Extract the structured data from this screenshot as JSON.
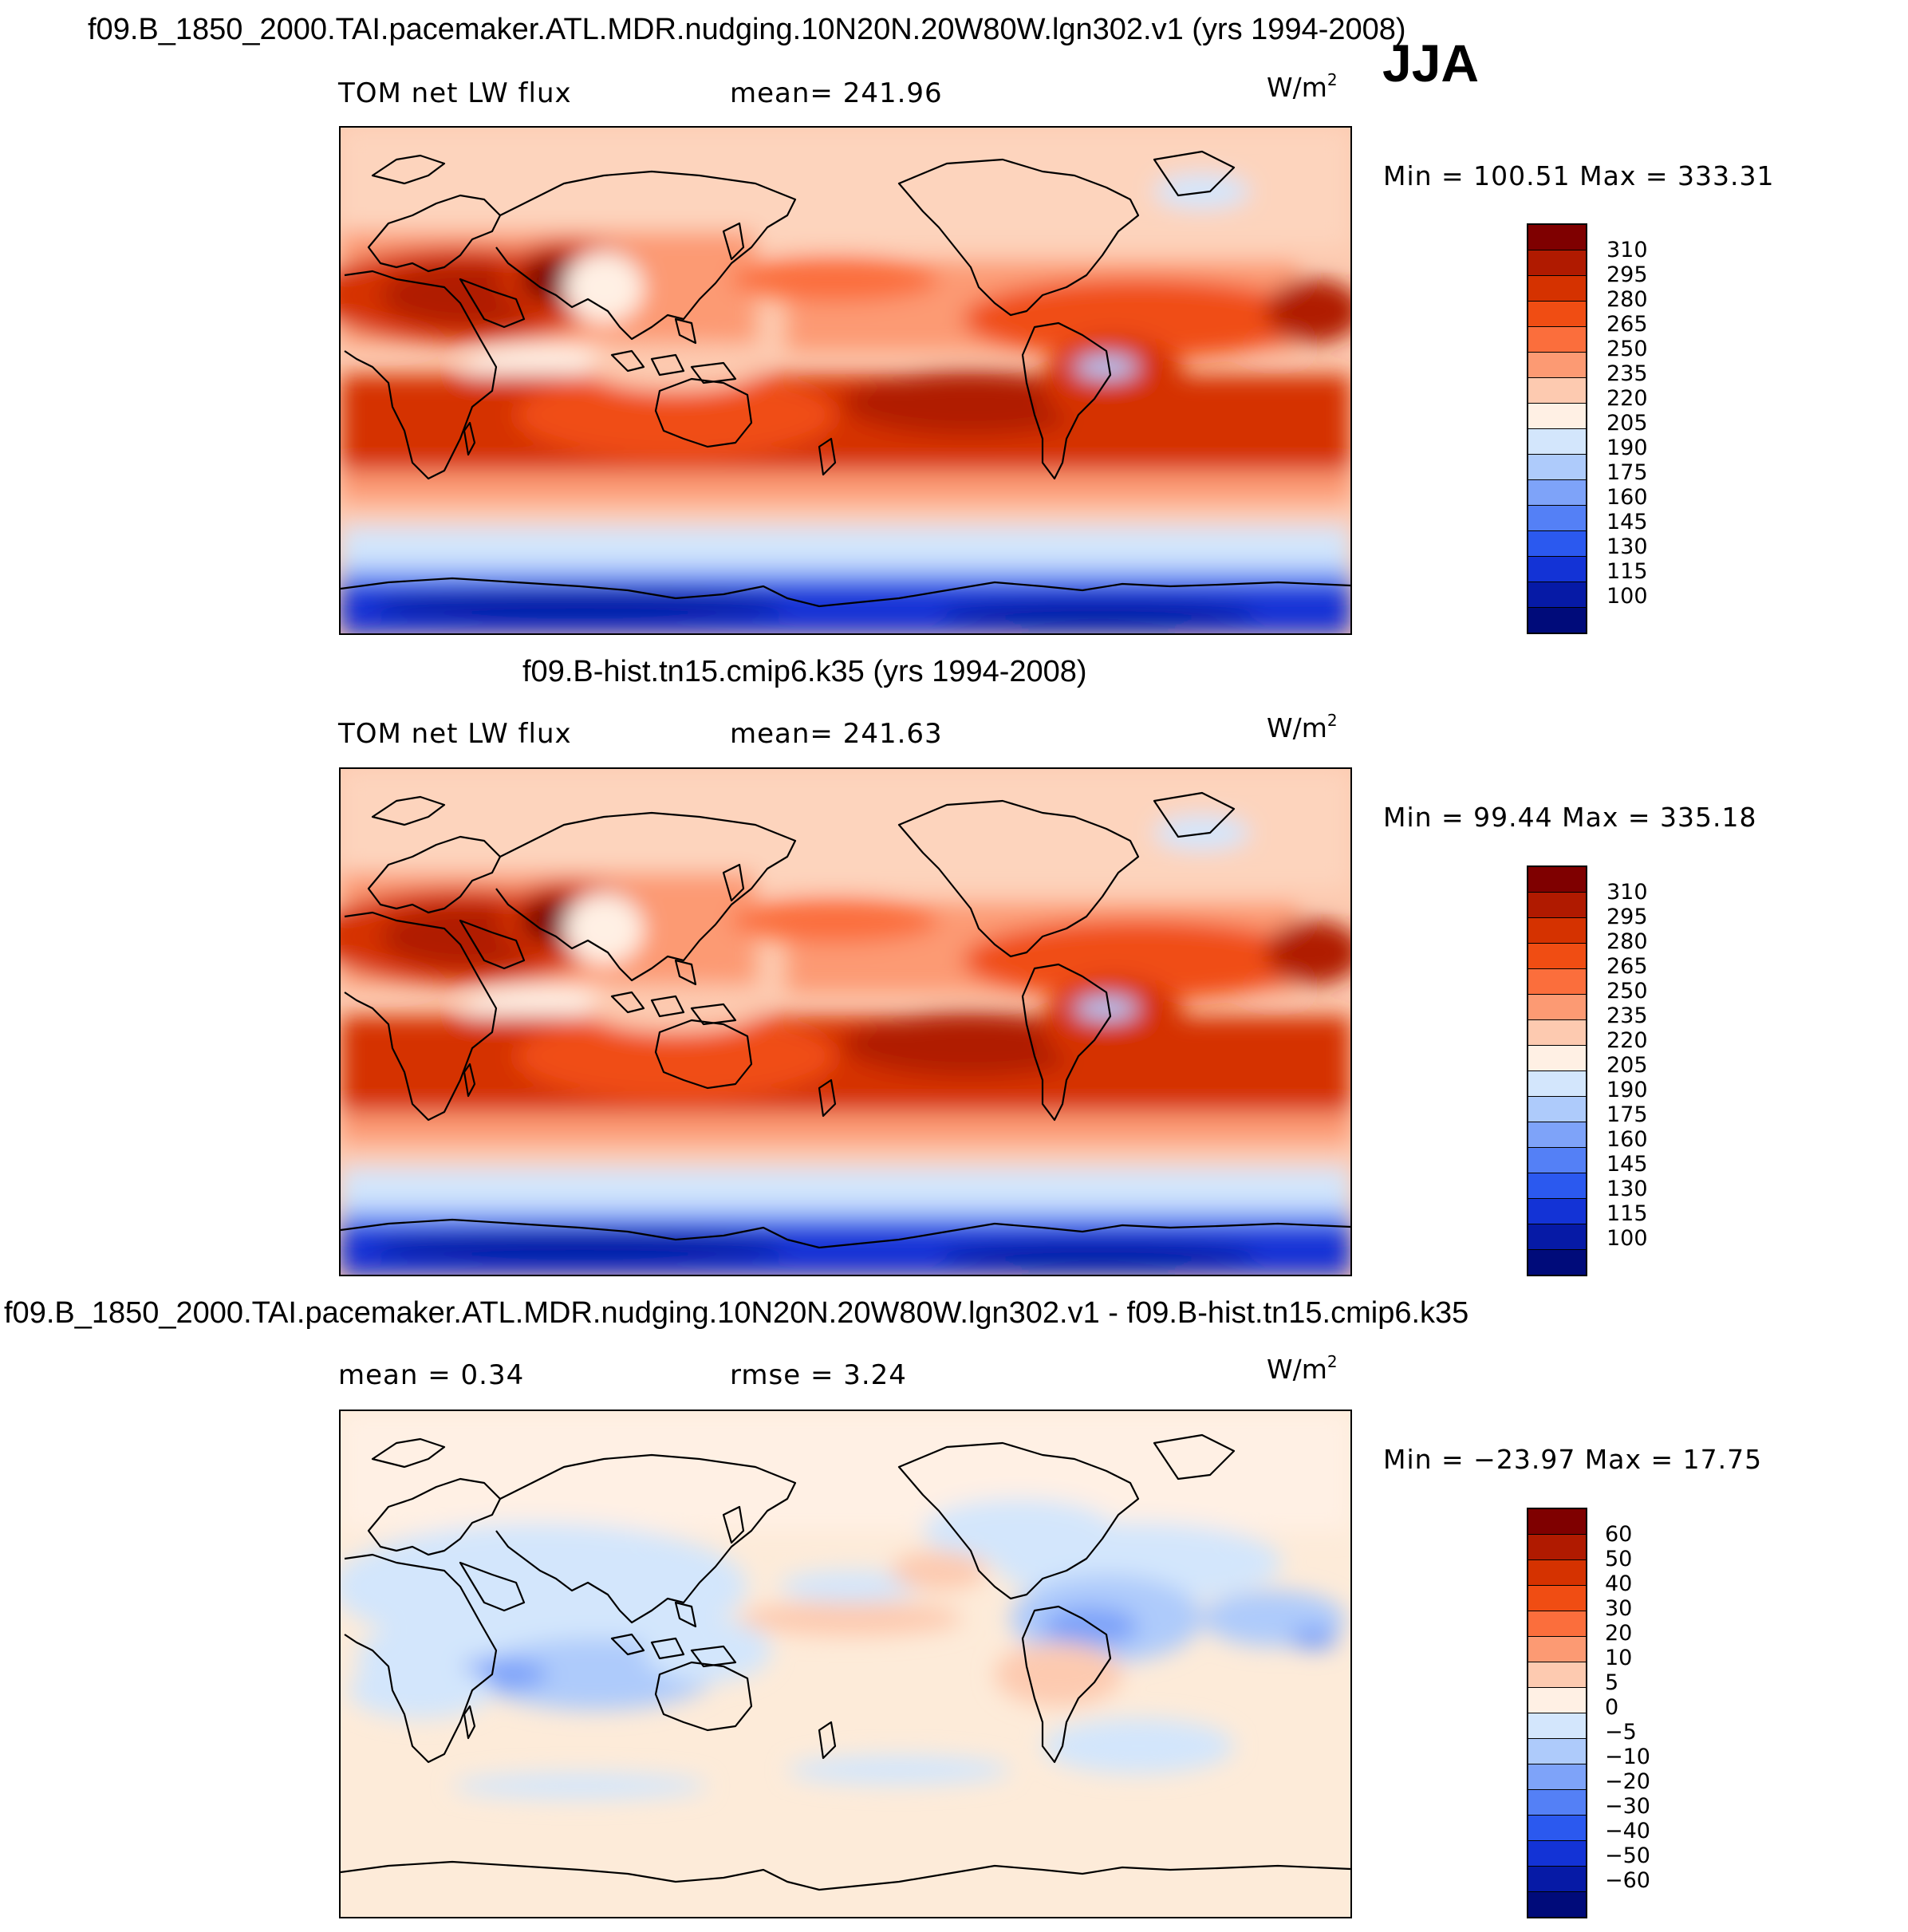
{
  "season": "JJA",
  "units_base": "W/m",
  "units_exp": "2",
  "panels": [
    {
      "title": "f09.B_1850_2000.TAI.pacemaker.ATL.MDR.nudging.10N20N.20W80W.lgn302.v1 (yrs 1994-2008)",
      "left_label": "TOM  net  LW  flux",
      "right_label": "mean=  241.96",
      "minmax": "Min  =  100.51  Max  =  333.31",
      "levels": [
        "310",
        "295",
        "280",
        "265",
        "250",
        "235",
        "220",
        "205",
        "190",
        "175",
        "160",
        "145",
        "130",
        "115",
        "100"
      ]
    },
    {
      "title": "f09.B-hist.tn15.cmip6.k35 (yrs 1994-2008)",
      "left_label": "TOM  net  LW  flux",
      "right_label": "mean=  241.63",
      "minmax": "Min  =    99.44  Max  =  335.18",
      "levels": [
        "310",
        "295",
        "280",
        "265",
        "250",
        "235",
        "220",
        "205",
        "190",
        "175",
        "160",
        "145",
        "130",
        "115",
        "100"
      ]
    },
    {
      "title": "f09.B_1850_2000.TAI.pacemaker.ATL.MDR.nudging.10N20N.20W80W.lgn302.v1 - f09.B-hist.tn15.cmip6.k35",
      "left_label": "mean  =      0.34",
      "right_label": "rmse  =      3.24",
      "minmax": "Min  =  −23.97  Max  =     17.75",
      "levels": [
        "60",
        "50",
        "40",
        "30",
        "20",
        "10",
        "5",
        "0",
        "−5",
        "−10",
        "−20",
        "−30",
        "−40",
        "−50",
        "−60"
      ]
    }
  ],
  "colorbar_colors": [
    "#7f0000",
    "#b01a00",
    "#d53200",
    "#f04d13",
    "#fb6e3c",
    "#fc9a73",
    "#fdcab0",
    "#fff0e4",
    "#d3e6fc",
    "#aecbfb",
    "#7ea3f9",
    "#5480f6",
    "#2b59ef",
    "#1333d6",
    "#061aa6",
    "#000b7a"
  ]
}
